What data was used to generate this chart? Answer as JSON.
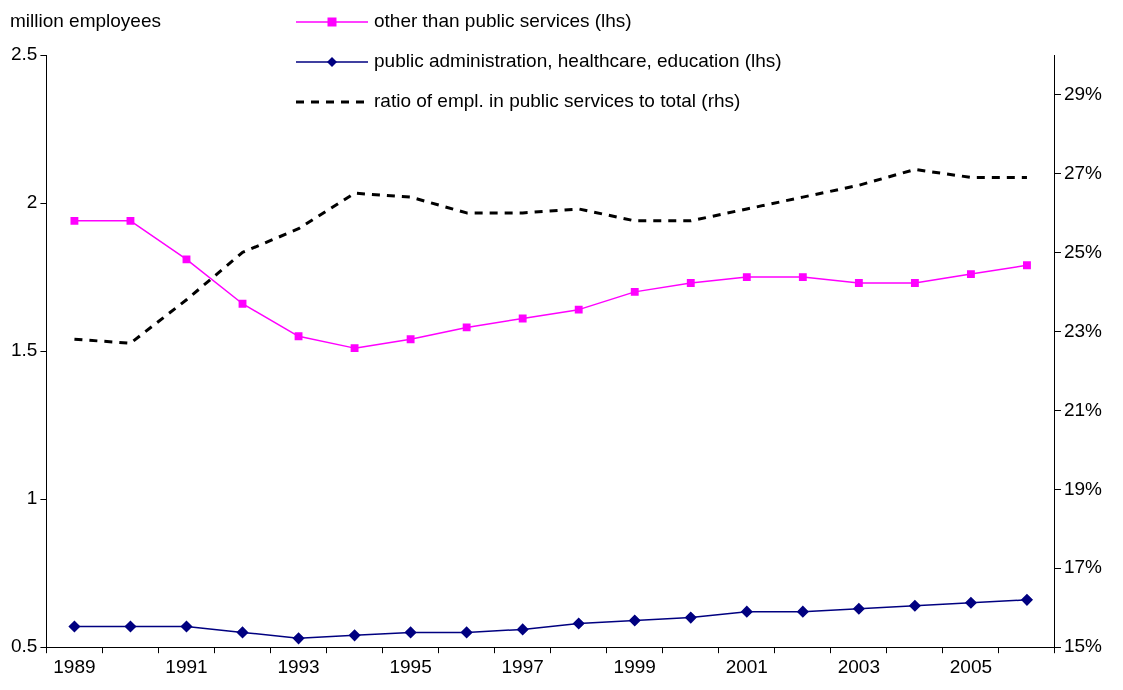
{
  "chart_data": {
    "type": "line",
    "ylabel": "million employees",
    "categories": [
      "1989",
      null,
      "1991",
      null,
      "1993",
      null,
      "1995",
      null,
      "1997",
      null,
      "1999",
      null,
      "2001",
      null,
      "2003",
      null,
      "2005",
      null
    ],
    "series": [
      {
        "name": "other than public services (lhs)",
        "color": "#ff00ff",
        "marker": "square",
        "line_style": "solid",
        "values": [
          1.94,
          1.94,
          1.81,
          1.66,
          1.55,
          1.51,
          1.54,
          1.58,
          1.61,
          1.64,
          1.7,
          1.73,
          1.75,
          1.75,
          1.73,
          1.73,
          1.76,
          1.79
        ]
      },
      {
        "name": "public administration, healthcare, education (lhs)",
        "color": "#000080",
        "marker": "diamond",
        "line_style": "solid",
        "values": [
          0.57,
          0.57,
          0.57,
          0.55,
          0.53,
          0.54,
          0.55,
          0.55,
          0.56,
          0.58,
          0.59,
          0.6,
          0.62,
          0.62,
          0.63,
          0.64,
          0.65,
          0.66
        ]
      },
      {
        "name": "ratio of empl. in public services to total (rhs)",
        "color": "#000000",
        "marker": "none",
        "line_style": "dashed",
        "axis": "y2",
        "values": [
          22.8,
          22.7,
          23.8,
          25.0,
          25.6,
          26.5,
          26.4,
          26.0,
          26.0,
          26.1,
          25.8,
          25.8,
          26.1,
          26.4,
          26.7,
          27.1,
          26.9,
          26.9
        ]
      }
    ],
    "ylim": [
      0.5,
      2.5
    ],
    "yticks": [
      0.5,
      1,
      1.5,
      2,
      2.5
    ],
    "y2lim": [
      15,
      30
    ],
    "y2ticks": [
      {
        "value": 15,
        "label": "15%"
      },
      {
        "value": 17,
        "label": "17%"
      },
      {
        "value": 19,
        "label": "19%"
      },
      {
        "value": 21,
        "label": "21%"
      },
      {
        "value": 23,
        "label": "23%"
      },
      {
        "value": 25,
        "label": "25%"
      },
      {
        "value": 27,
        "label": "27%"
      },
      {
        "value": 29,
        "label": "29%"
      }
    ],
    "grid": false,
    "legend": "top"
  }
}
